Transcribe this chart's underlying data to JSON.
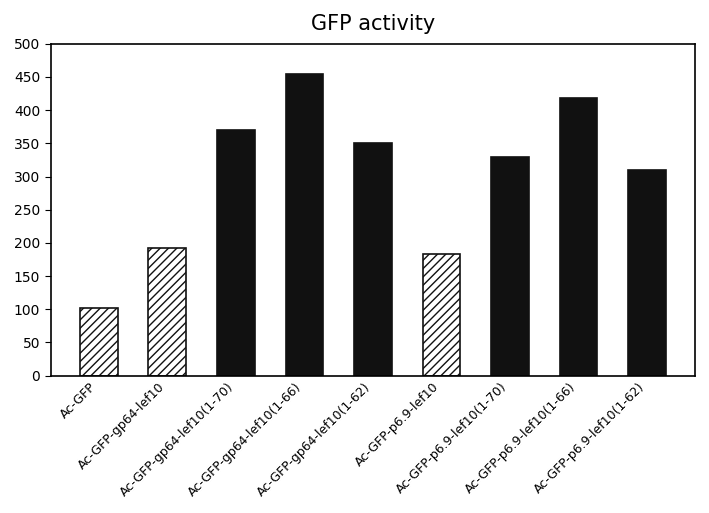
{
  "title": "GFP activity",
  "categories": [
    "Ac-GFP",
    "Ac-GFP-gp64-lef10",
    "Ac-GFP-gp64-lef10(1-70)",
    "Ac-GFP-gp64-lef10(1-66)",
    "Ac-GFP-gp64-lef10(1-62)",
    "Ac-GFP-p6.9-lef10",
    "Ac-GFP-p6.9-lef10(1-70)",
    "Ac-GFP-p6.9-lef10(1-66)",
    "Ac-GFP-p6.9-lef10(1-62)"
  ],
  "values": [
    102,
    192,
    370,
    455,
    350,
    183,
    330,
    418,
    310
  ],
  "hatched": [
    true,
    true,
    false,
    false,
    false,
    true,
    false,
    false,
    false
  ],
  "ylim": [
    0,
    500
  ],
  "yticks": [
    0,
    50,
    100,
    150,
    200,
    250,
    300,
    350,
    400,
    450,
    500
  ],
  "bar_color_solid": "#111111",
  "bar_color_hatch": "#ffffff",
  "hatch_pattern": "////",
  "hatch_edgecolor": "#111111",
  "title_fontsize": 15,
  "tick_fontsize": 10,
  "xlabel_fontsize": 9,
  "background_color": "#ffffff",
  "figure_bg": "#ffffff",
  "bar_width": 0.55
}
